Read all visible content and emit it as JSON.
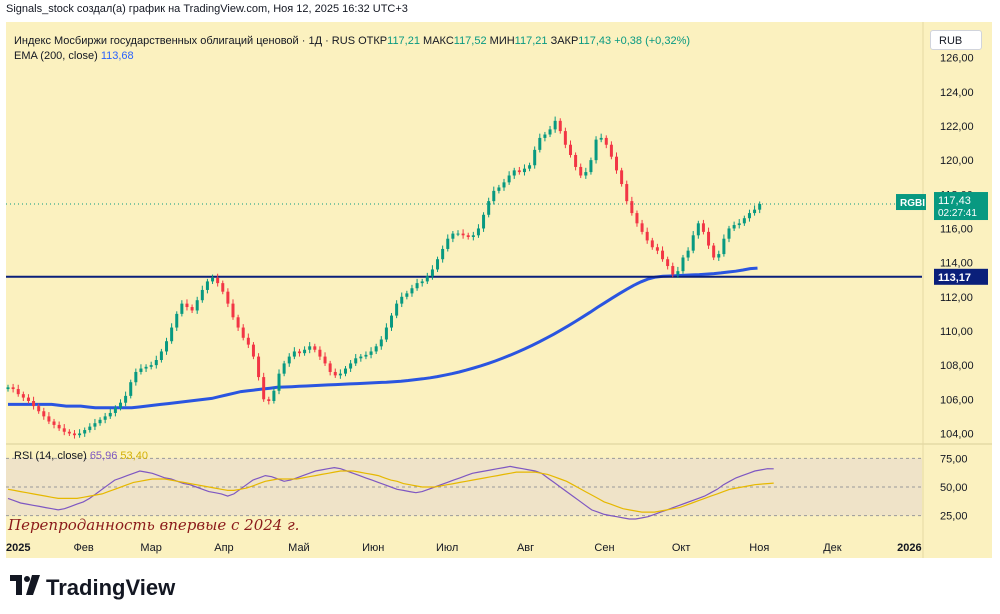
{
  "header": {
    "attribution": "Signals_stock создал(а) график на TradingView.com, Ноя 12, 2025 16:32 UTC+3"
  },
  "legend": {
    "instrument": "Индекс Мосбиржи государственных облигаций ценовой · 1Д · RUS",
    "open_label": "ОТКР",
    "open_value": "117,21",
    "high_label": "МАКС",
    "high_value": "117,52",
    "low_label": "МИН",
    "low_value": "117,21",
    "close_label": "ЗАКР",
    "close_value": "117,43",
    "change": "+0,38 (+0,32%)",
    "ema_label": "EMA (200, close)",
    "ema_value": "113,68"
  },
  "rsi_legend": {
    "label": "RSI (14, close)",
    "value1": "65,96",
    "value2": "53,40"
  },
  "currency_button": "RUB",
  "annotation": "Перепроданность впервые с 2024 г.",
  "price_tags": {
    "ticker": "RGBI",
    "last_price": "117,43",
    "countdown": "02:27:41",
    "level": "113,17"
  },
  "brand": {
    "name": "TradingView"
  },
  "colors": {
    "background": "#fbf1bf",
    "up": "#089981",
    "down": "#f23645",
    "ema": "#2a55e0",
    "level": "#0a1f7a",
    "rsi": "#7e57c2",
    "rsi_ma": "#e6b800"
  },
  "chart_data": {
    "type": "candlestick",
    "ylim": [
      103.5,
      127.5
    ],
    "y_ticks": [
      "126,00",
      "124,00",
      "122,00",
      "120,00",
      "118,00",
      "116,00",
      "114,00",
      "112,00",
      "110,00",
      "108,00",
      "106,00",
      "104,00"
    ],
    "y_tick_values": [
      126,
      124,
      122,
      120,
      118,
      116,
      114,
      112,
      110,
      108,
      106,
      104
    ],
    "x_ticks": [
      "2025",
      "Фев",
      "Мар",
      "Апр",
      "Май",
      "Июн",
      "Июл",
      "Авг",
      "Сен",
      "Окт",
      "Ноя",
      "Дек",
      "2026"
    ],
    "x_tick_index": [
      0,
      22,
      41,
      62,
      83,
      104,
      125,
      148,
      170,
      192,
      214,
      235,
      256
    ],
    "horizontal_level": 113.17,
    "close": [
      106.7,
      106.6,
      106.3,
      106.1,
      105.9,
      105.6,
      105.3,
      105.0,
      104.7,
      104.5,
      104.3,
      104.1,
      104.0,
      103.9,
      104.0,
      104.2,
      104.4,
      104.6,
      104.8,
      105.0,
      105.2,
      105.5,
      105.8,
      106.2,
      107.0,
      107.6,
      107.8,
      107.9,
      108.0,
      108.3,
      108.8,
      109.4,
      110.2,
      111.0,
      111.6,
      111.4,
      111.2,
      111.8,
      112.4,
      112.9,
      113.1,
      112.8,
      112.3,
      111.6,
      110.8,
      110.2,
      109.6,
      109.2,
      108.5,
      107.3,
      106.0,
      105.9,
      106.5,
      107.5,
      108.1,
      108.5,
      108.8,
      108.7,
      108.9,
      109.1,
      108.9,
      108.5,
      108.1,
      107.6,
      107.4,
      107.5,
      107.8,
      108.1,
      108.4,
      108.5,
      108.6,
      108.8,
      109.1,
      109.5,
      110.2,
      110.9,
      111.6,
      112.0,
      112.2,
      112.5,
      112.8,
      112.9,
      113.2,
      113.6,
      114.2,
      114.8,
      115.4,
      115.7,
      115.7,
      115.6,
      115.5,
      115.6,
      116.0,
      116.8,
      117.6,
      118.2,
      118.4,
      118.7,
      119.1,
      119.4,
      119.3,
      119.5,
      119.7,
      120.6,
      121.3,
      121.5,
      121.8,
      122.3,
      121.7,
      120.9,
      120.3,
      119.6,
      119.1,
      119.3,
      120.0,
      121.2,
      121.3,
      120.9,
      120.2,
      119.4,
      118.6,
      117.6,
      116.9,
      116.3,
      115.8,
      115.3,
      114.9,
      114.7,
      114.2,
      113.8,
      113.3,
      113.5,
      114.3,
      114.7,
      115.6,
      116.3,
      115.8,
      115.0,
      114.3,
      114.5,
      115.4,
      116.0,
      116.2,
      116.3,
      116.6,
      116.9,
      117.1,
      117.43
    ],
    "ema200": [
      105.7,
      105.7,
      105.7,
      105.7,
      105.7,
      105.7,
      105.7,
      105.65,
      105.6,
      105.6,
      105.6,
      105.55,
      105.5,
      105.5,
      105.5,
      105.5,
      105.5,
      105.5,
      105.55,
      105.6,
      105.65,
      105.7,
      105.75,
      105.8,
      105.85,
      105.9,
      105.95,
      106.0,
      106.05,
      106.15,
      106.25,
      106.35,
      106.45,
      106.5,
      106.55,
      106.6,
      106.65,
      106.7,
      106.72,
      106.74,
      106.76,
      106.78,
      106.8,
      106.82,
      106.84,
      106.86,
      106.88,
      106.9,
      106.92,
      106.94,
      106.96,
      106.98,
      107.0,
      107.03,
      107.06,
      107.1,
      107.15,
      107.2,
      107.26,
      107.33,
      107.41,
      107.5,
      107.6,
      107.71,
      107.83,
      107.96,
      108.1,
      108.25,
      108.41,
      108.58,
      108.76,
      108.95,
      109.15,
      109.36,
      109.58,
      109.81,
      110.05,
      110.3,
      110.56,
      110.83,
      111.1,
      111.38,
      111.65,
      111.92,
      112.18,
      112.43,
      112.67,
      112.88,
      113.05,
      113.15,
      113.2,
      113.22,
      113.24,
      113.26,
      113.28,
      113.3,
      113.33,
      113.36,
      113.4,
      113.45,
      113.5,
      113.57,
      113.65,
      113.68
    ],
    "rsi": [
      40,
      38,
      36,
      35,
      34,
      33,
      32,
      31,
      30,
      31,
      33,
      35,
      37,
      40,
      44,
      48,
      52,
      56,
      58,
      60,
      62,
      64,
      63,
      62,
      60,
      58,
      57,
      55,
      53,
      52,
      50,
      48,
      46,
      45,
      44,
      42,
      44,
      48,
      52,
      56,
      58,
      60,
      59,
      57,
      55,
      56,
      58,
      60,
      62,
      64,
      65,
      66,
      67,
      66,
      64,
      62,
      60,
      58,
      56,
      54,
      52,
      50,
      48,
      47,
      46,
      45,
      46,
      48,
      50,
      52,
      54,
      56,
      58,
      60,
      62,
      63,
      64,
      65,
      66,
      67,
      68,
      67,
      66,
      65,
      64,
      62,
      58,
      54,
      50,
      46,
      42,
      38,
      34,
      30,
      28,
      26,
      25,
      24,
      23,
      22,
      22,
      23,
      24,
      26,
      28,
      30,
      32,
      34,
      36,
      38,
      40,
      42,
      45,
      48,
      52,
      55,
      58,
      60,
      62,
      64,
      65,
      66,
      65.96
    ],
    "rsi_ma": [
      48,
      47,
      46,
      45,
      44,
      43,
      42,
      41,
      40,
      40,
      40,
      40,
      41,
      42,
      43,
      44,
      46,
      48,
      50,
      52,
      54,
      55,
      56,
      57,
      57,
      57,
      56,
      55,
      54,
      53,
      52,
      51,
      50,
      49,
      48,
      47,
      47,
      48,
      49,
      51,
      53,
      55,
      56,
      57,
      57,
      57,
      57,
      58,
      59,
      60,
      61,
      62,
      63,
      64,
      64,
      64,
      63,
      62,
      61,
      60,
      58,
      56,
      55,
      53,
      52,
      51,
      50,
      50,
      50,
      51,
      52,
      53,
      54,
      55,
      56,
      57,
      58,
      59,
      60,
      61,
      62,
      63,
      63,
      63,
      63,
      62,
      61,
      59,
      57,
      55,
      52,
      49,
      46,
      43,
      40,
      37,
      35,
      33,
      31,
      30,
      29,
      28,
      28,
      28,
      29,
      30,
      31,
      32,
      34,
      36,
      38,
      40,
      42,
      44,
      46,
      48,
      49,
      50,
      51,
      52,
      52.5,
      53,
      53.4
    ],
    "rsi_levels": [
      75,
      50,
      25
    ],
    "rsi_ticks": [
      "75,00",
      "50,00",
      "25,00"
    ]
  }
}
